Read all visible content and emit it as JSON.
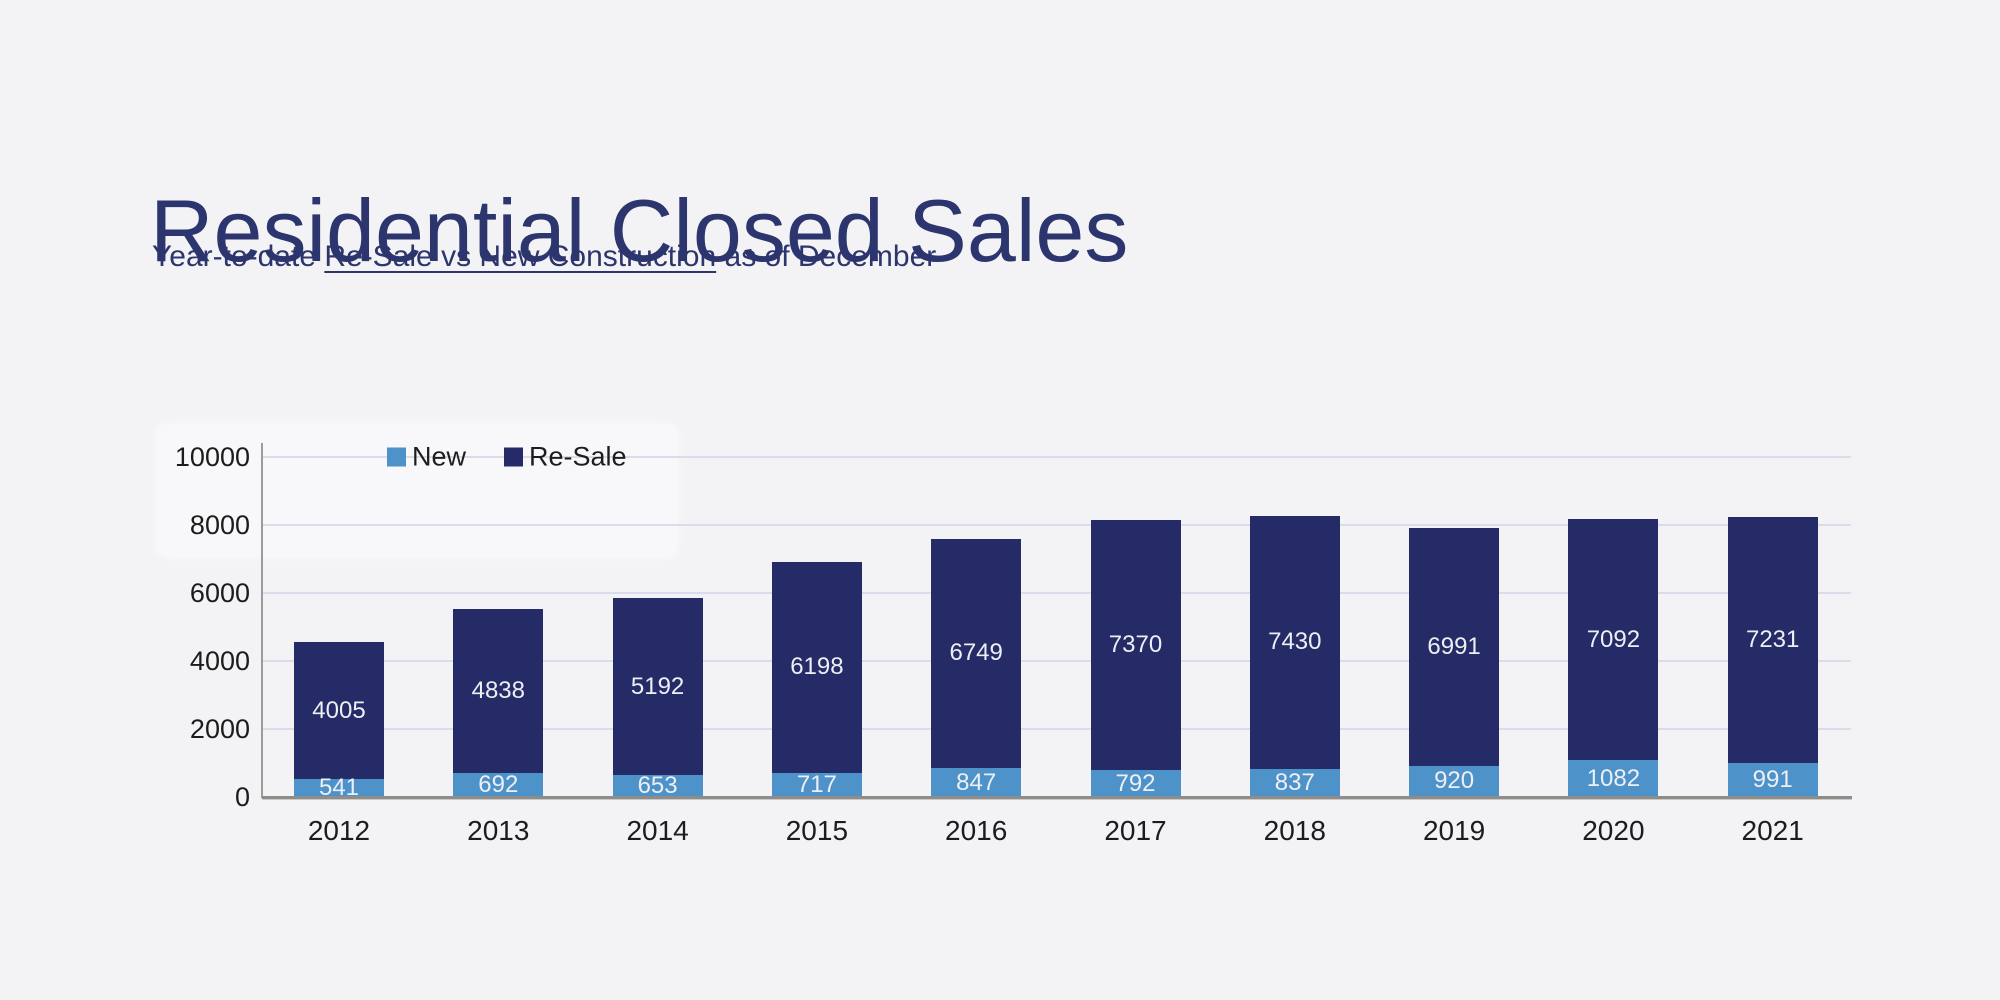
{
  "page": {
    "title": "Residential Closed Sales",
    "subtitle_prefix": "Year-to-date ",
    "subtitle_underlined": "Re-Sale vs New Construction",
    "subtitle_suffix": " as of December"
  },
  "colors": {
    "background": "#f3f3f5",
    "title": "#2c356e",
    "gridline": "#d9ddeb",
    "axis": "#8d8d8d",
    "tick_text": "#1c1c1c",
    "bar_label": "#edeff4",
    "new_series": "#4e92ca",
    "resale_series": "#242b66"
  },
  "chart_data": {
    "type": "bar",
    "stacked": true,
    "title": "Residential Closed Sales",
    "subtitle": "Year-to-date Re-Sale vs New Construction as of December",
    "categories": [
      "2012",
      "2013",
      "2014",
      "2015",
      "2016",
      "2017",
      "2018",
      "2019",
      "2020",
      "2021"
    ],
    "series": [
      {
        "name": "New",
        "color": "#4e92ca",
        "values": [
          541,
          692,
          653,
          717,
          847,
          792,
          837,
          920,
          1082,
          991
        ]
      },
      {
        "name": "Re-Sale",
        "color": "#242b66",
        "values": [
          4005,
          4838,
          5192,
          6198,
          6749,
          7370,
          7430,
          6991,
          7092,
          7231
        ]
      }
    ],
    "y_ticks": [
      0,
      2000,
      4000,
      6000,
      8000,
      10000
    ],
    "ylim": [
      0,
      10000
    ],
    "xlabel": "",
    "ylabel": "",
    "grid": "horizontal",
    "legend_position": "top-left-inside",
    "data_labels": "inside-white"
  }
}
